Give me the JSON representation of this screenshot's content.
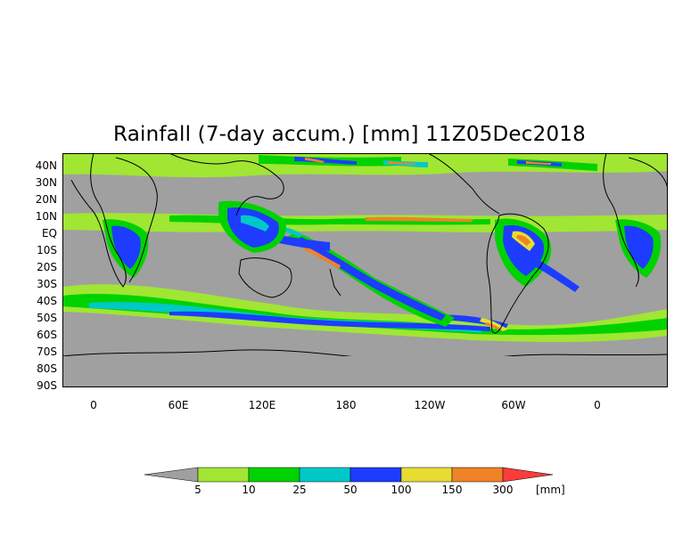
{
  "title": "Rainfall (7-day accum.) [mm] 11Z05Dec2018",
  "latitude_labels": [
    "40N",
    "30N",
    "20N",
    "10N",
    "EQ",
    "10S",
    "20S",
    "30S",
    "40S",
    "50S",
    "60S",
    "70S",
    "80S",
    "90S"
  ],
  "longitude_labels": [
    "0",
    "60E",
    "120E",
    "180",
    "120W",
    "60W",
    "0"
  ],
  "legend": {
    "labels": [
      "5",
      "10",
      "25",
      "50",
      "100",
      "150",
      "300"
    ],
    "unit": "[mm]",
    "colors": [
      "#a0a0a0",
      "#a0e632",
      "#00d200",
      "#00c8c8",
      "#1e3cff",
      "#e6dc32",
      "#f08228",
      "#fa3c3c"
    ]
  },
  "map_colors": {
    "background": "#a0a0a0",
    "coast": "#000000"
  }
}
